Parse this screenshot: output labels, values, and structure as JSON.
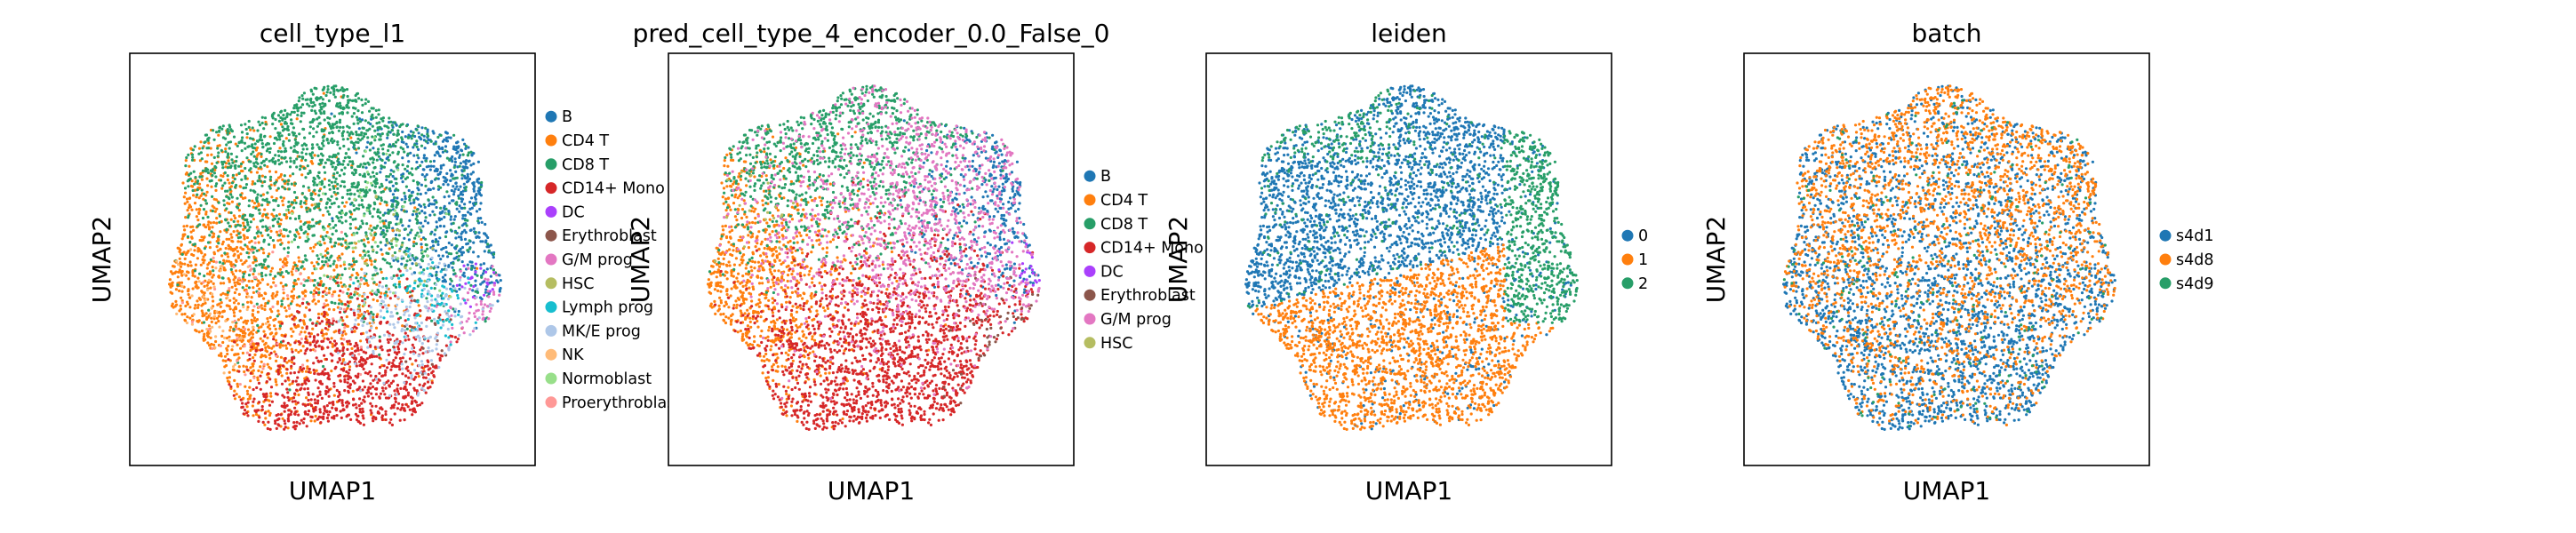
{
  "chart_data": [
    {
      "type": "scatter",
      "title": "cell_type_l1",
      "xlabel": "UMAP1",
      "ylabel": "UMAP2",
      "grid": false,
      "legend_placement": "right outside",
      "series": [
        {
          "name": "B",
          "color": "#1f77b4"
        },
        {
          "name": "CD4 T",
          "color": "#ff7f0e"
        },
        {
          "name": "CD8 T",
          "color": "#279e68"
        },
        {
          "name": "CD14+ Mono",
          "color": "#d62728"
        },
        {
          "name": "DC",
          "color": "#aa40fc"
        },
        {
          "name": "Erythroblast",
          "color": "#8c564b"
        },
        {
          "name": "G/M prog",
          "color": "#e377c2"
        },
        {
          "name": "HSC",
          "color": "#b5bd61"
        },
        {
          "name": "Lymph prog",
          "color": "#17becf"
        },
        {
          "name": "MK/E prog",
          "color": "#aec7e8"
        },
        {
          "name": "NK",
          "color": "#ffbb78"
        },
        {
          "name": "Normoblast",
          "color": "#98df8a"
        },
        {
          "name": "Proerythroblast",
          "color": "#ff9896"
        }
      ]
    },
    {
      "type": "scatter",
      "title": "pred_cell_type_4_encoder_0.0_False_0",
      "xlabel": "UMAP1",
      "ylabel": "UMAP2",
      "grid": false,
      "legend_placement": "right outside",
      "series": [
        {
          "name": "B",
          "color": "#1f77b4"
        },
        {
          "name": "CD4 T",
          "color": "#ff7f0e"
        },
        {
          "name": "CD8 T",
          "color": "#279e68"
        },
        {
          "name": "CD14+ Mono",
          "color": "#d62728"
        },
        {
          "name": "DC",
          "color": "#aa40fc"
        },
        {
          "name": "Erythroblast",
          "color": "#8c564b"
        },
        {
          "name": "G/M prog",
          "color": "#e377c2"
        },
        {
          "name": "HSC",
          "color": "#b5bd61"
        }
      ]
    },
    {
      "type": "scatter",
      "title": "leiden",
      "xlabel": "UMAP1",
      "ylabel": "UMAP2",
      "grid": false,
      "legend_placement": "right outside",
      "series": [
        {
          "name": "0",
          "color": "#1f77b4"
        },
        {
          "name": "1",
          "color": "#ff7f0e"
        },
        {
          "name": "2",
          "color": "#279e68"
        }
      ]
    },
    {
      "type": "scatter",
      "title": "batch",
      "xlabel": "UMAP1",
      "ylabel": "UMAP2",
      "grid": false,
      "legend_placement": "right outside",
      "series": [
        {
          "name": "s4d1",
          "color": "#1f77b4"
        },
        {
          "name": "s4d8",
          "color": "#ff7f0e"
        },
        {
          "name": "s4d9",
          "color": "#279e68"
        }
      ]
    }
  ]
}
